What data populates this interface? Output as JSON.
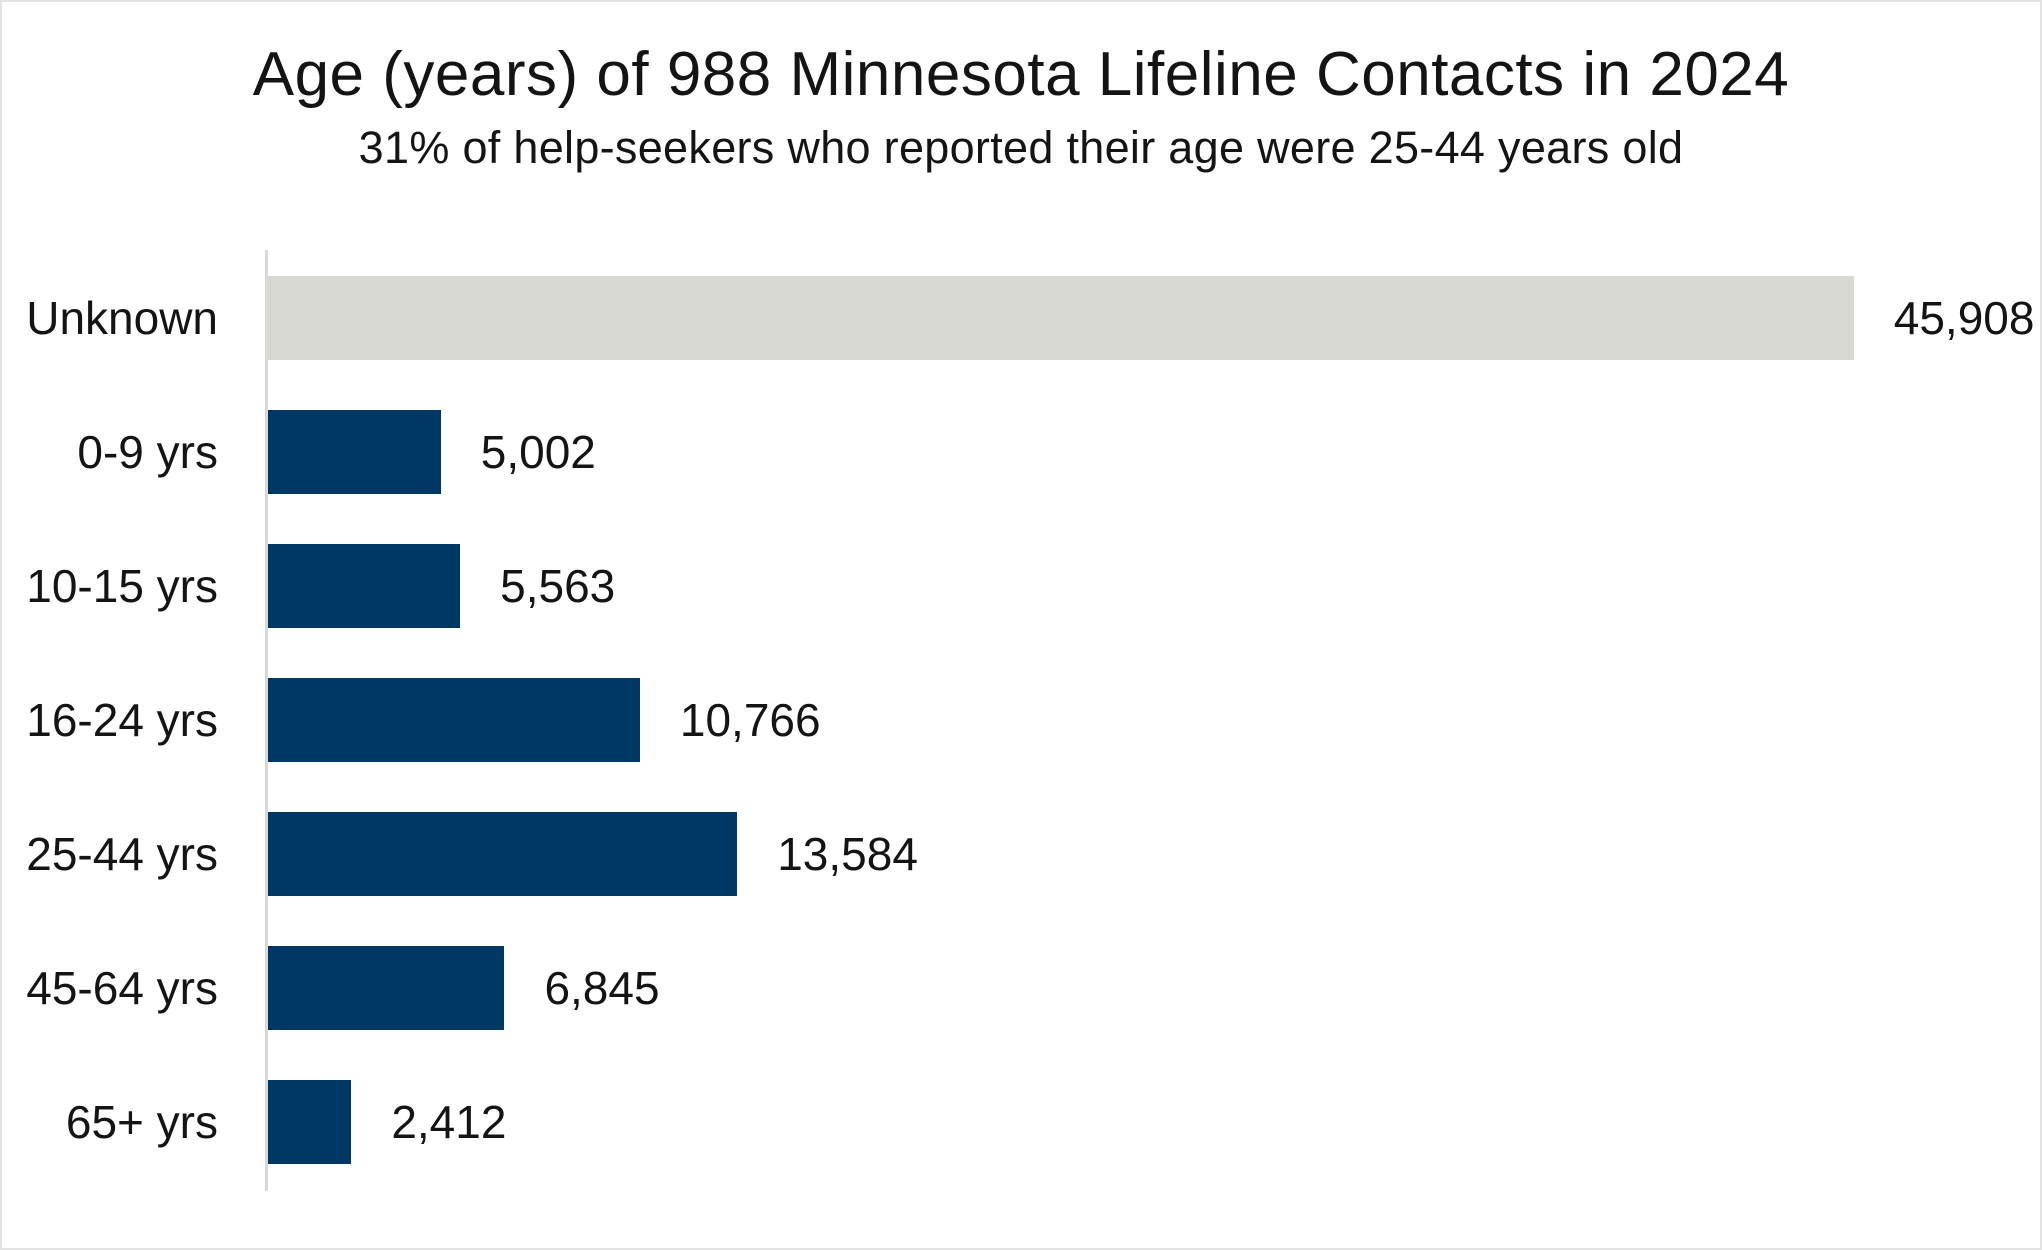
{
  "page": {
    "title": "Age (years) of 988 Minnesota Lifeline Contacts in 2024",
    "subtitle": "31% of help-seekers who reported their age were 25-44 years old"
  },
  "colors": {
    "bar_navy": "#003865",
    "bar_gray": "#d8d8d3",
    "axis_line": "#d9d9d9",
    "text": "#141414",
    "canvas_border": "#e3e3e3"
  },
  "chart_data": {
    "type": "bar",
    "orientation": "horizontal",
    "title": "Age (years) of 988 Minnesota Lifeline Contacts in 2024",
    "subtitle": "31% of help-seekers who reported their age were 25-44 years old",
    "xlabel": "",
    "ylabel": "",
    "xlim": [
      0,
      51300
    ],
    "grid": false,
    "legend": false,
    "value_label_position": "outside-end",
    "category_label_position": "left",
    "bars": [
      {
        "category": "Unknown",
        "value": 45908,
        "value_label": "45,908",
        "color": "#d8d8d3"
      },
      {
        "category": "0-9 yrs",
        "value": 5002,
        "value_label": "5,002",
        "color": "#003865"
      },
      {
        "category": "10-15 yrs",
        "value": 5563,
        "value_label": "5,563",
        "color": "#003865"
      },
      {
        "category": "16-24 yrs",
        "value": 10766,
        "value_label": "10,766",
        "color": "#003865"
      },
      {
        "category": "25-44 yrs",
        "value": 13584,
        "value_label": "13,584",
        "color": "#003865"
      },
      {
        "category": "45-64 yrs",
        "value": 6845,
        "value_label": "6,845",
        "color": "#003865"
      },
      {
        "category": "65+ yrs",
        "value": 2412,
        "value_label": "2,412",
        "color": "#003865"
      }
    ]
  }
}
